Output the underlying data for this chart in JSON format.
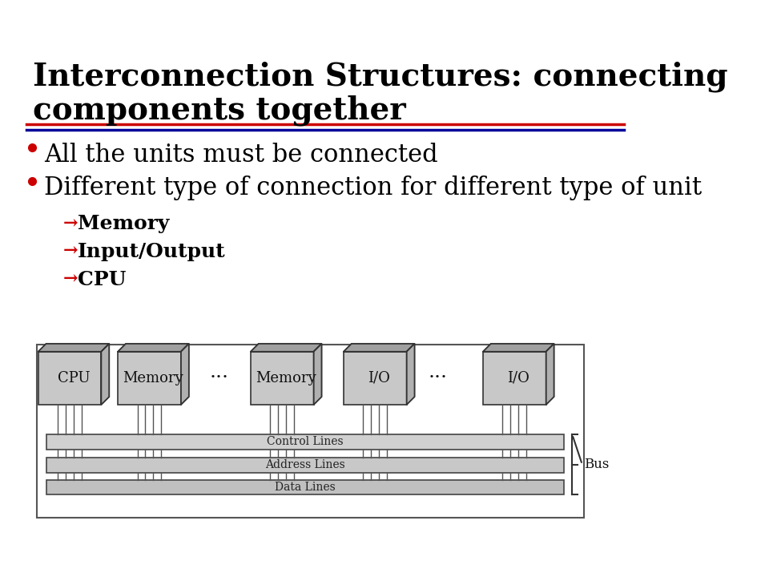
{
  "title_line1": "Interconnection Structures: connecting",
  "title_line2": "components together",
  "title_color": "#000000",
  "title_fontsize": 28,
  "bg_color": "#ffffff",
  "red_line_color": "#cc0000",
  "blue_line_color": "#000099",
  "bullet_color": "#cc0000",
  "bullet1": "All the units must be connected",
  "bullet2": "Different type of connection for different type of unit",
  "sub_items": [
    "Memory",
    "Input/Output",
    "CPU"
  ],
  "sub_color": "#cc0000",
  "sub_fontsize": 18,
  "bullet_fontsize": 22,
  "diagram_bg": "#d8d8d8",
  "diagram_border": "#333333",
  "component_labels": [
    "CPU",
    "Memory",
    "···",
    "Memory",
    "I/O",
    "···",
    "I/O"
  ],
  "bus_labels": [
    "Control Lines",
    "Address Lines",
    "Data Lines"
  ],
  "bus_label": "Bus"
}
